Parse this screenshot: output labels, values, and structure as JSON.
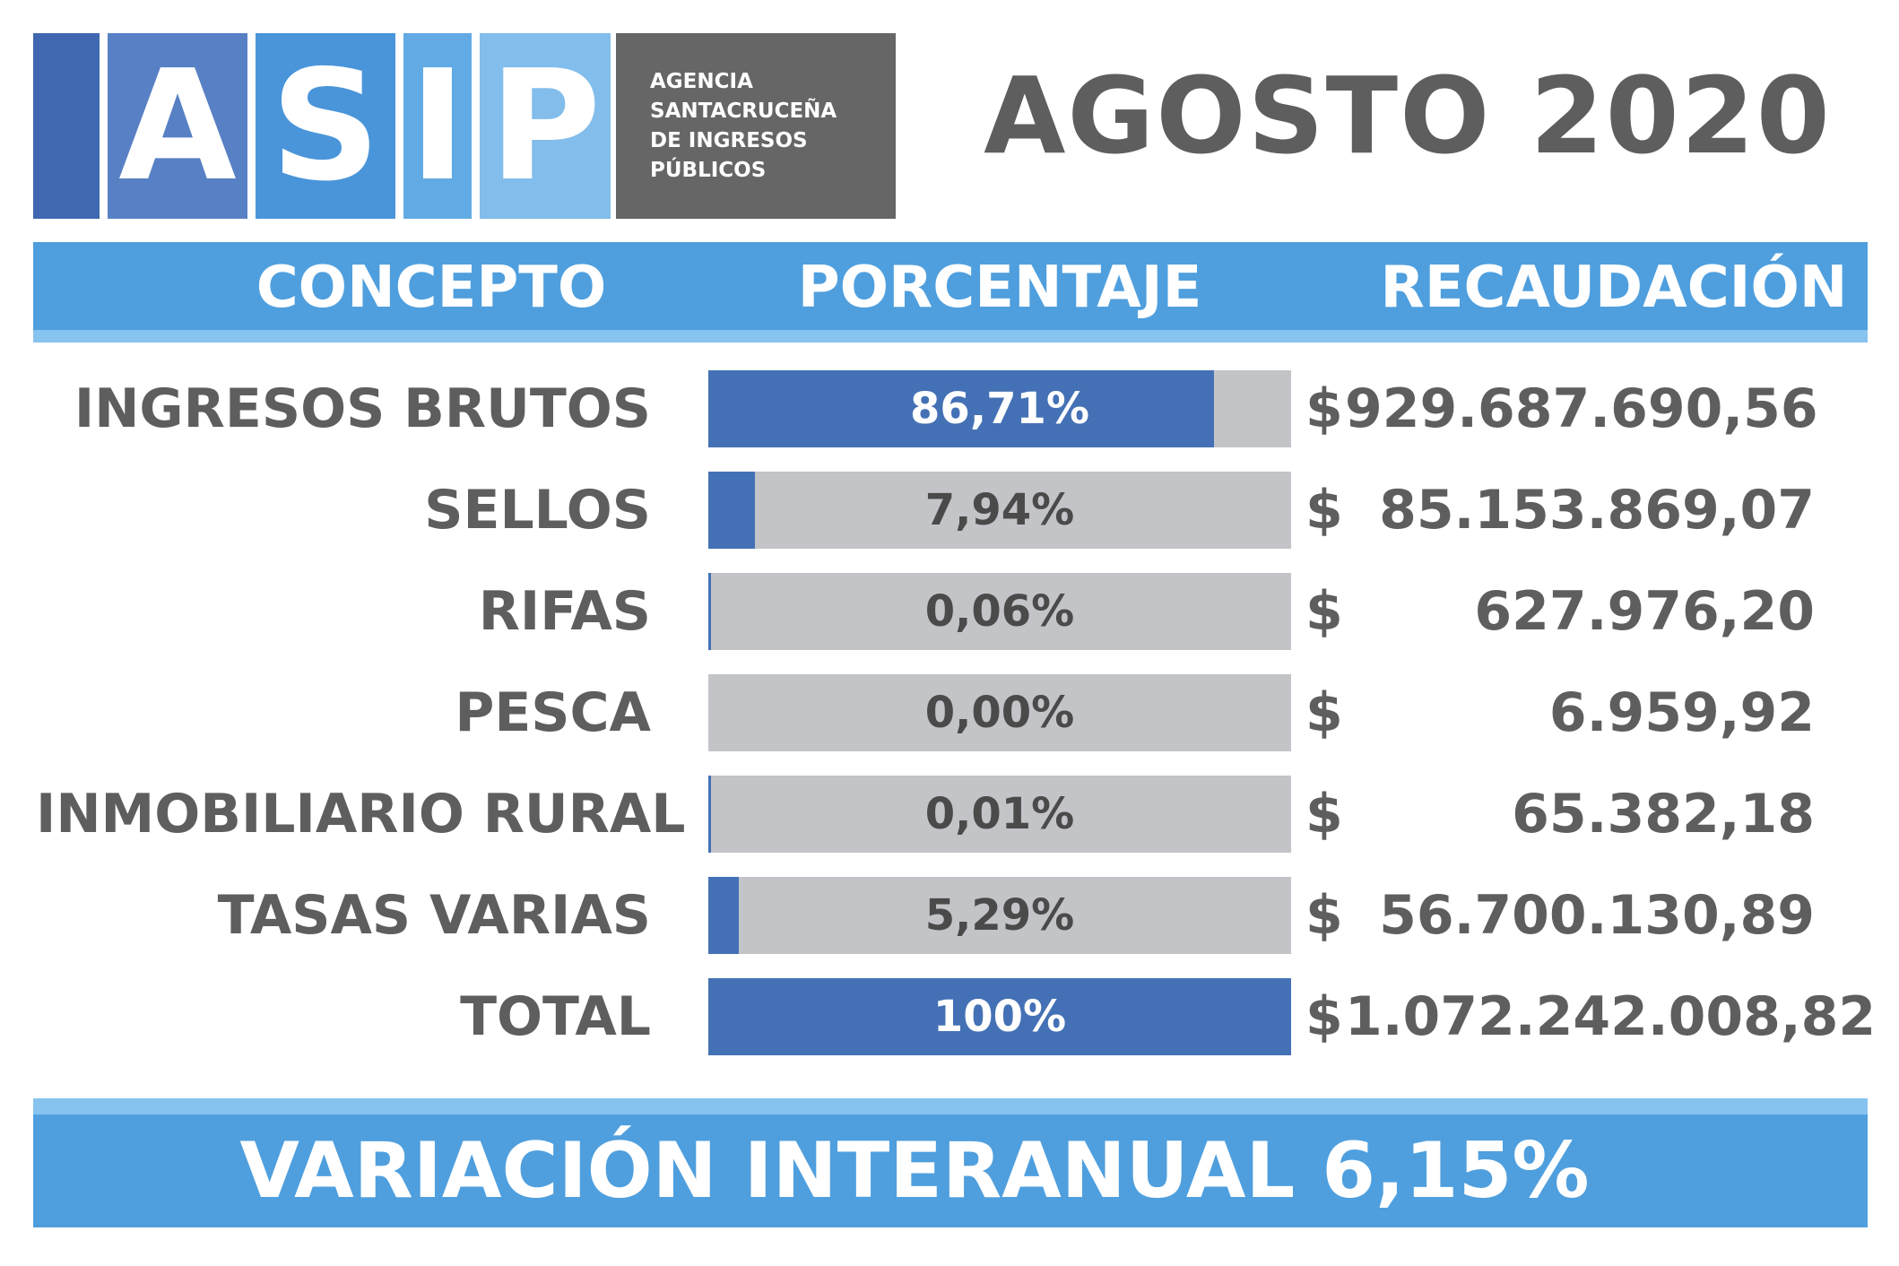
{
  "logo": {
    "letters": [
      "A",
      "S",
      "I",
      "P"
    ],
    "letter_colors": [
      "#5880c4",
      "#4a95d9",
      "#62aae3",
      "#82bdeb"
    ],
    "agency_lines": [
      "AGENCIA",
      "SANTACRUCEÑA",
      "DE INGRESOS",
      "PÚBLICOS"
    ]
  },
  "period": "AGOSTO 2020",
  "headers": {
    "concepto": "CONCEPTO",
    "porcentaje": "PORCENTAJE",
    "recaudacion": "RECAUDACIÓN"
  },
  "colors": {
    "bar_fill": "#4471b5",
    "bar_track": "#c2c4c8",
    "header_blue": "#4f9fde",
    "header_light_blue": "#86c3ef",
    "text_gray": "#5e5e5e"
  },
  "currency_symbol": "$",
  "chart_data": {
    "type": "bar",
    "orientation": "horizontal",
    "unit": "%",
    "xlim": [
      0,
      100
    ],
    "categories": [
      "INGRESOS BRUTOS",
      "SELLOS",
      "RIFAS",
      "PESCA",
      "INMOBILIARIO RURAL",
      "TASAS VARIAS",
      "TOTAL"
    ],
    "values": [
      86.71,
      7.94,
      0.06,
      0.0,
      0.01,
      5.29,
      100
    ],
    "percent_labels": [
      "86,71%",
      "7,94%",
      "0,06%",
      "0,00%",
      "0,01%",
      "5,29%",
      "100%"
    ],
    "amounts": [
      "929.687.690,56",
      "85.153.869,07",
      "627.976,20",
      "6.959,92",
      "65.382,18",
      "56.700.130,89",
      "1.072.242.008,82"
    ]
  },
  "footer": {
    "text": "VARIACIÓN INTERANUAL 6,15%"
  }
}
